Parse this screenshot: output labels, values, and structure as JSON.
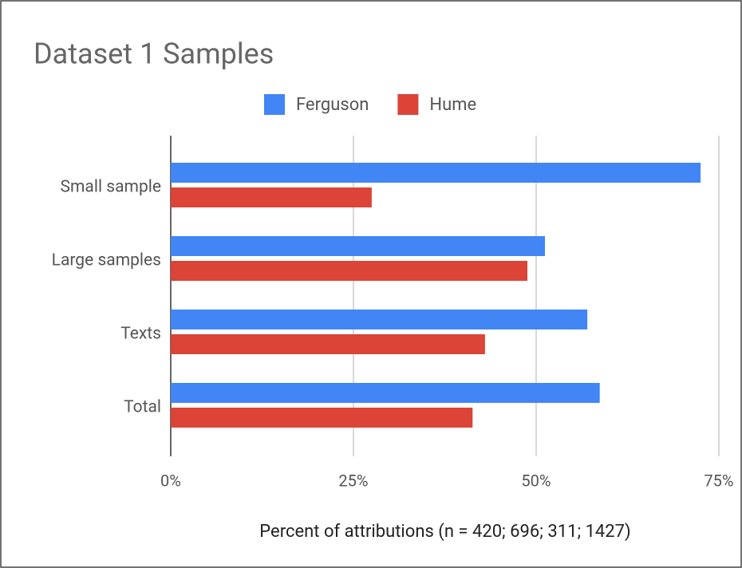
{
  "chart_data": {
    "type": "bar",
    "orientation": "horizontal",
    "title": "Dataset 1 Samples",
    "categories": [
      "Small sample",
      "Large samples",
      "Texts",
      "Total"
    ],
    "series": [
      {
        "name": "Ferguson",
        "color": "#4285f4",
        "values": [
          72.5,
          51.2,
          57,
          58.7
        ]
      },
      {
        "name": "Hume",
        "color": "#db4437",
        "values": [
          27.5,
          48.8,
          43,
          41.3
        ]
      }
    ],
    "xlabel": "Percent of attributions (n = 420; 696; 311; 1427)",
    "xlim": [
      0,
      75
    ],
    "xticks": [
      {
        "value": 0,
        "label": "0%"
      },
      {
        "value": 25,
        "label": "25%"
      },
      {
        "value": 50,
        "label": "50%"
      },
      {
        "value": 75,
        "label": "75%"
      }
    ],
    "grid": true,
    "legend": "top"
  }
}
